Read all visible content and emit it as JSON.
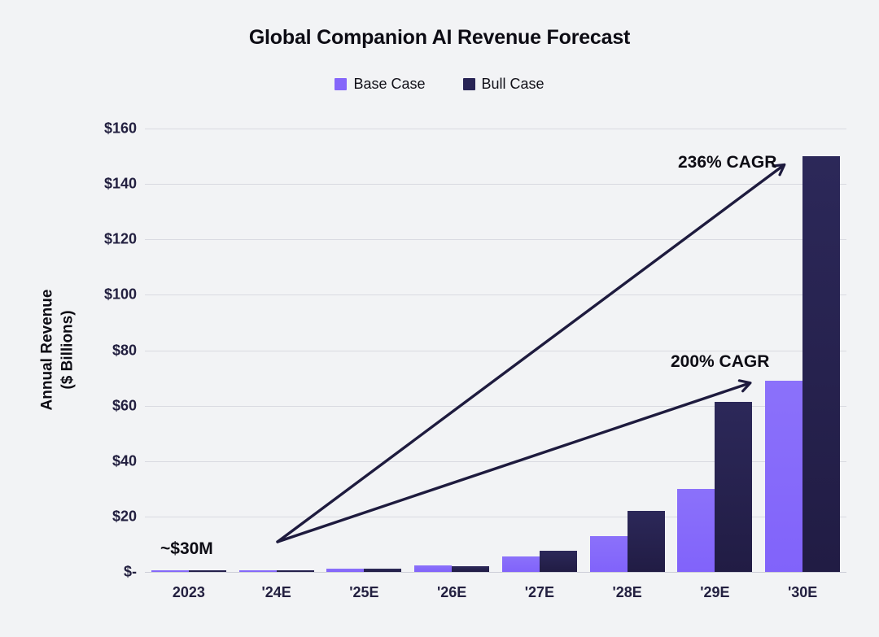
{
  "title": "Global Companion AI Revenue Forecast",
  "colors": {
    "background": "#F2F3F5",
    "base_case": "#8566FA",
    "bull_case": "#282455",
    "gridline": "#D9DAE1",
    "arrow": "#1E1B3E",
    "text": "#0D0C14"
  },
  "chart_data": {
    "type": "bar",
    "title": "Global Companion AI Revenue Forecast",
    "categories": [
      "2023",
      "'24E",
      "'25E",
      "'26E",
      "'27E",
      "'28E",
      "'29E",
      "'30E"
    ],
    "series": [
      {
        "name": "Base Case",
        "color": "#8566FA",
        "values": [
          0.03,
          0.5,
          1.3,
          2.3,
          5.5,
          13,
          30,
          69
        ]
      },
      {
        "name": "Bull Case",
        "color": "#282455",
        "values": [
          0.03,
          0.5,
          1.1,
          2.1,
          7.5,
          22,
          61.5,
          150
        ]
      }
    ],
    "xlabel": "",
    "ylabel": "Annual Revenue ($ Billions)",
    "ylabel_lines": [
      "Annual Revenue",
      "($ Billions)"
    ],
    "ylim": [
      0,
      160
    ],
    "ytick_step": 20,
    "ytick_labels": [
      "$-",
      "$20",
      "$40",
      "$60",
      "$80",
      "$100",
      "$120",
      "$140",
      "$160"
    ],
    "grid": true,
    "legend_position": "top",
    "annotations": [
      {
        "text": "~$30M",
        "target": "2023 bars"
      },
      {
        "text": "236% CAGR",
        "target": "Bull Case 2023 to '30E"
      },
      {
        "text": "200% CAGR",
        "target": "Base Case 2023 to '30E"
      }
    ]
  }
}
